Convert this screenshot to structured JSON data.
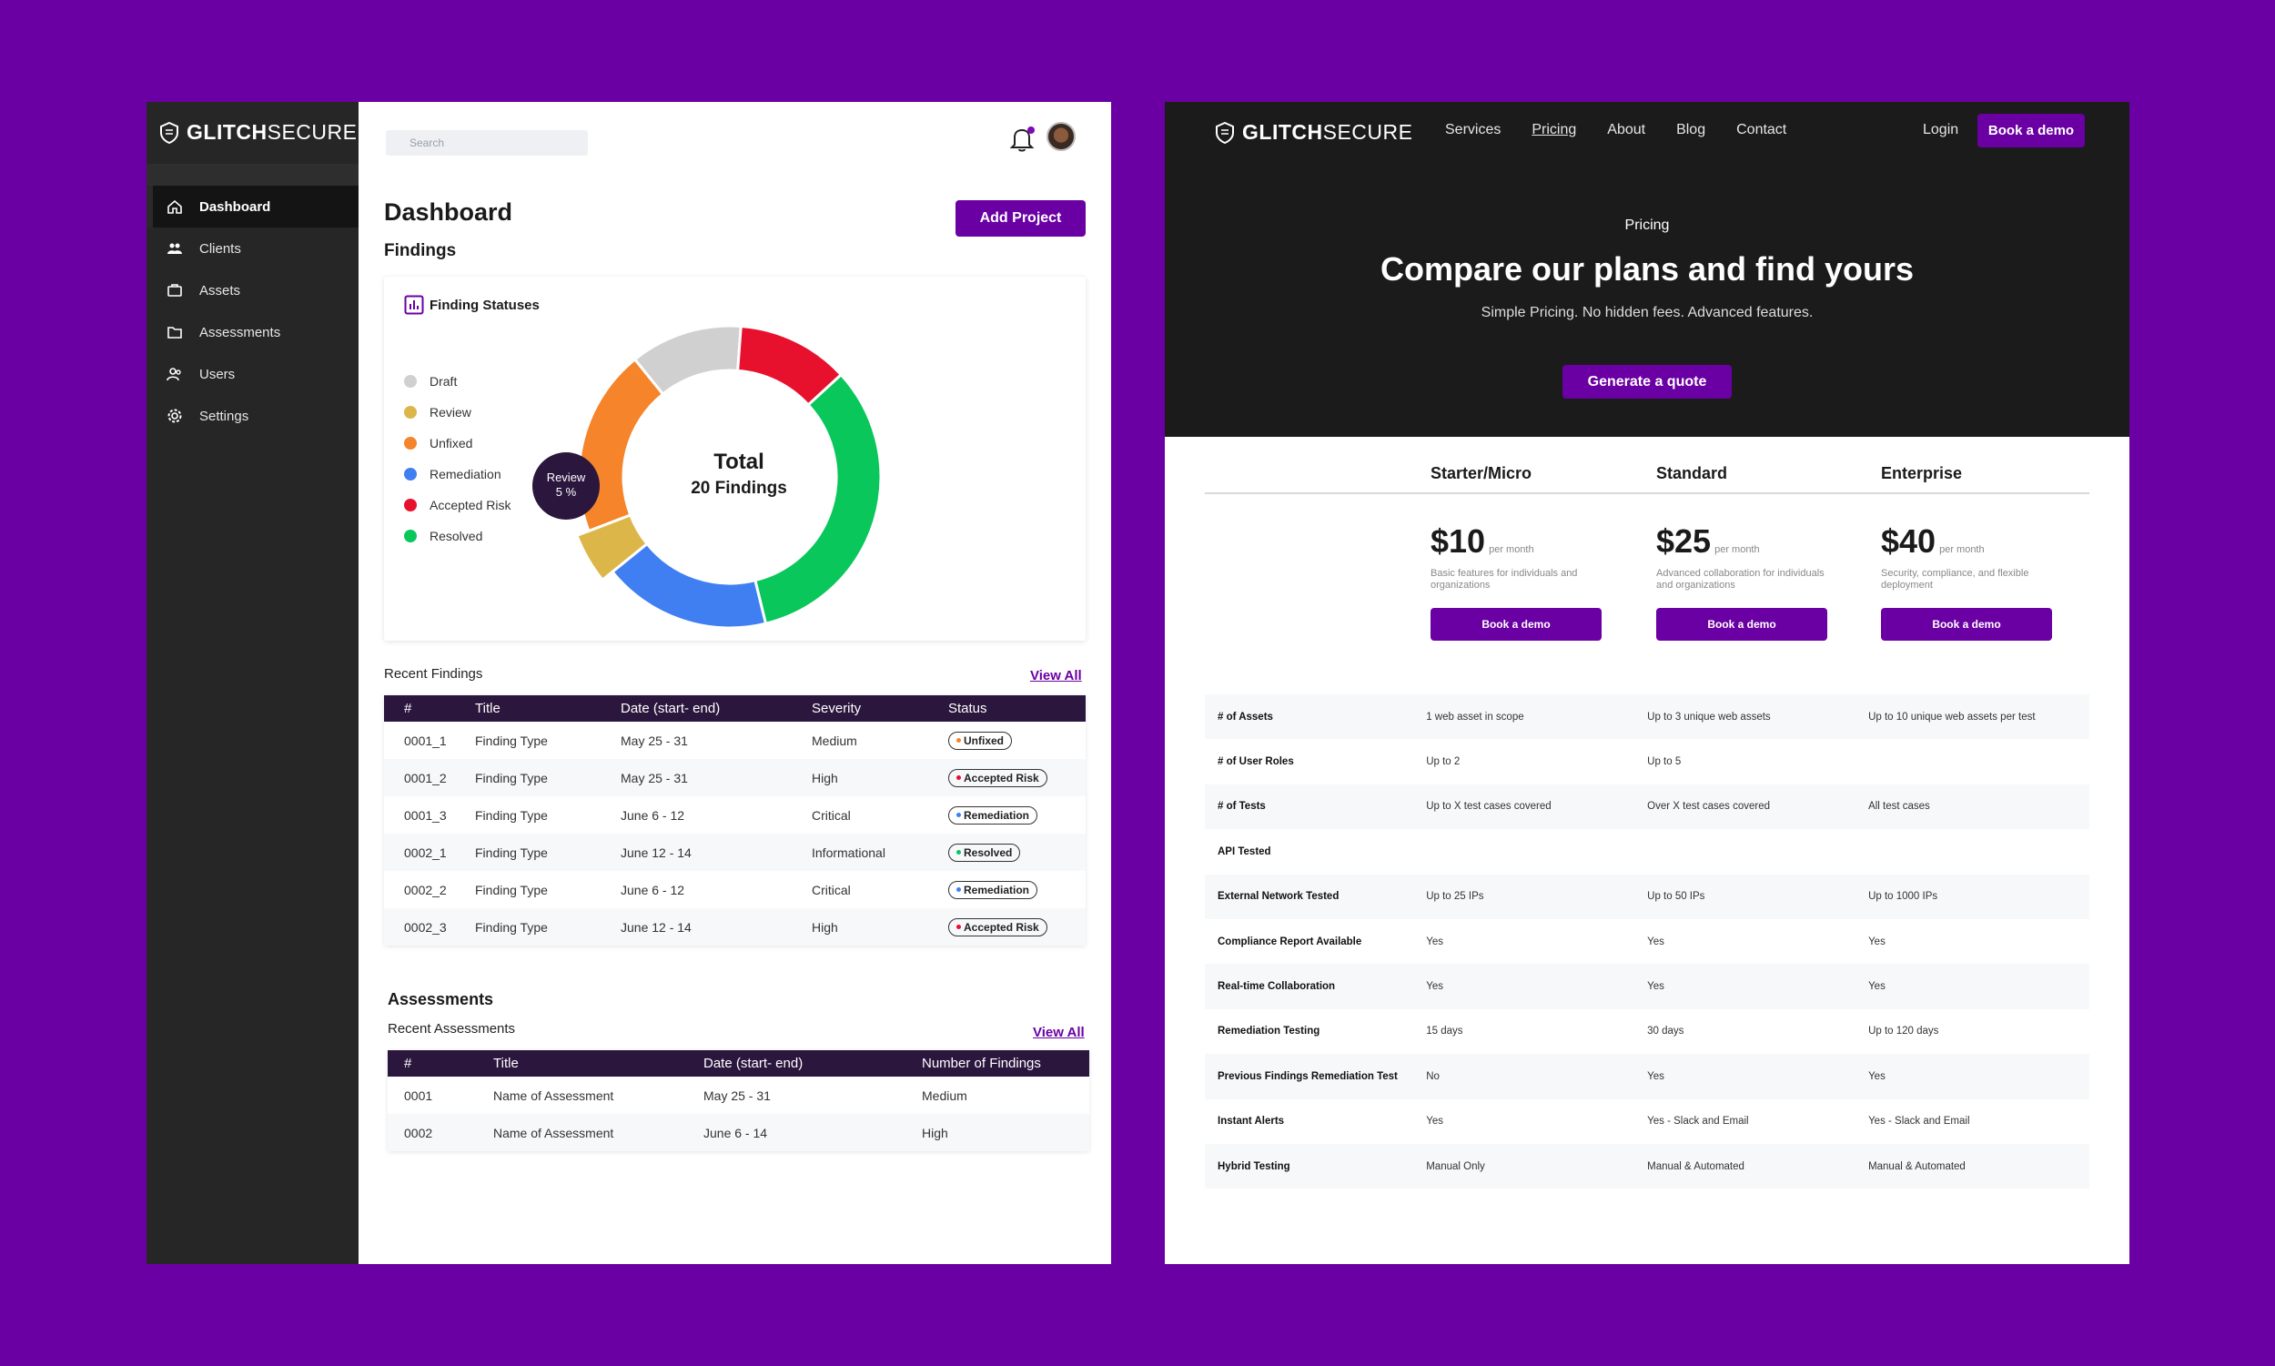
{
  "brand": {
    "part1": "GLITCH",
    "part2": "SECURE"
  },
  "dashboard": {
    "sidebar": [
      {
        "label": "Dashboard",
        "icon": "home-icon"
      },
      {
        "label": "Clients",
        "icon": "clients-icon"
      },
      {
        "label": "Assets",
        "icon": "briefcase-icon"
      },
      {
        "label": "Assessments",
        "icon": "folder-icon"
      },
      {
        "label": "Users",
        "icon": "users-icon"
      },
      {
        "label": "Settings",
        "icon": "gear-icon"
      }
    ],
    "search_placeholder": "Search",
    "title": "Dashboard",
    "add_project": "Add Project",
    "findings_title": "Findings",
    "chart_title": "Finding Statuses",
    "donut_total_label": "Total",
    "donut_total_value": "20 Findings",
    "tooltip": {
      "label": "Review",
      "value": "5 %"
    },
    "recent_findings_label": "Recent Findings",
    "view_all": "View All",
    "findings_columns": [
      "#",
      "Title",
      "Date (start- end)",
      "Severity",
      "Status"
    ],
    "findings_rows": [
      {
        "id": "0001_1",
        "title": "Finding Type",
        "date": "May 25 - 31",
        "severity": "Medium",
        "status": "Unfixed",
        "color": "#f5842a"
      },
      {
        "id": "0001_2",
        "title": "Finding Type",
        "date": "May 25 - 31",
        "severity": "High",
        "status": "Accepted Risk",
        "color": "#e8112d"
      },
      {
        "id": "0001_3",
        "title": "Finding Type",
        "date": "June 6 - 12",
        "severity": "Critical",
        "status": "Remediation",
        "color": "#3f7ff2"
      },
      {
        "id": "0002_1",
        "title": "Finding Type",
        "date": "June 12 - 14",
        "severity": "Informational",
        "status": "Resolved",
        "color": "#09c75a"
      },
      {
        "id": "0002_2",
        "title": "Finding Type",
        "date": "June 6 - 12",
        "severity": "Critical",
        "status": "Remediation",
        "color": "#3f7ff2"
      },
      {
        "id": "0002_3",
        "title": "Finding Type",
        "date": "June 12 - 14",
        "severity": "High",
        "status": "Accepted Risk",
        "color": "#e8112d"
      }
    ],
    "assessments_title": "Assessments",
    "recent_assessments_label": "Recent Assessments",
    "assess_columns": [
      "#",
      "Title",
      "Date (start- end)",
      "Number of Findings"
    ],
    "assess_rows": [
      {
        "id": "0001",
        "title": "Name of Assessment",
        "date": "May 25 - 31",
        "count": "Medium"
      },
      {
        "id": "0002",
        "title": "Name of Assessment",
        "date": "June 6 - 14",
        "count": "High"
      }
    ]
  },
  "chart_data": {
    "type": "pie",
    "title": "Finding Statuses",
    "categories": [
      "Draft",
      "Review",
      "Unfixed",
      "Remediation",
      "Accepted Risk",
      "Resolved"
    ],
    "values": [
      12,
      5,
      20,
      18,
      12,
      33
    ],
    "colors": [
      "#d0d0d0",
      "#ddb64a",
      "#f5842a",
      "#3f7ff2",
      "#e8112d",
      "#09c75a"
    ],
    "center_label": "Total 20 Findings"
  },
  "pricing": {
    "nav": [
      "Services",
      "Pricing",
      "About",
      "Blog",
      "Contact"
    ],
    "active_nav": "Pricing",
    "login": "Login",
    "book_demo": "Book a demo",
    "eyebrow": "Pricing",
    "headline": "Compare our plans and find yours",
    "lead": "Simple Pricing. No hidden fees. Advanced features.",
    "quote_button": "Generate a quote",
    "plans": [
      {
        "name": "Starter/Micro",
        "price": "$10",
        "per": "per month",
        "desc": "Basic features for individuals and organizations",
        "button": "Book a demo"
      },
      {
        "name": "Standard",
        "price": "$25",
        "per": "per month",
        "desc": "Advanced collaboration for individuals and organizations",
        "button": "Book a demo"
      },
      {
        "name": "Enterprise",
        "price": "$40",
        "per": "per month",
        "desc": "Security, compliance, and flexible deployment",
        "button": "Book a demo"
      }
    ],
    "features": [
      {
        "name": "# of Assets",
        "v": [
          "1 web asset in scope",
          "Up to 3 unique web assets",
          "Up to 10 unique web assets per test"
        ]
      },
      {
        "name": "# of User Roles",
        "v": [
          "Up to 2",
          "Up to 5",
          ""
        ]
      },
      {
        "name": "# of Tests",
        "v": [
          "Up to X test cases covered",
          "Over X test cases covered",
          "All test cases"
        ]
      },
      {
        "name": "API Tested",
        "v": [
          "",
          "",
          ""
        ]
      },
      {
        "name": "External Network Tested",
        "v": [
          "Up to 25 IPs",
          "Up to 50 IPs",
          "Up to 1000 IPs"
        ]
      },
      {
        "name": "Compliance Report Available",
        "v": [
          "Yes",
          "Yes",
          "Yes"
        ]
      },
      {
        "name": "Real-time Collaboration",
        "v": [
          "Yes",
          "Yes",
          "Yes"
        ]
      },
      {
        "name": "Remediation Testing",
        "v": [
          "15 days",
          "30 days",
          "Up to 120 days"
        ]
      },
      {
        "name": "Previous Findings Remediation Test",
        "v": [
          "No",
          "Yes",
          "Yes"
        ]
      },
      {
        "name": "Instant Alerts",
        "v": [
          "Yes",
          "Yes - Slack and Email",
          "Yes - Slack and Email"
        ]
      },
      {
        "name": "Hybrid Testing",
        "v": [
          "Manual Only",
          "Manual & Automated",
          "Manual & Automated"
        ]
      }
    ]
  }
}
